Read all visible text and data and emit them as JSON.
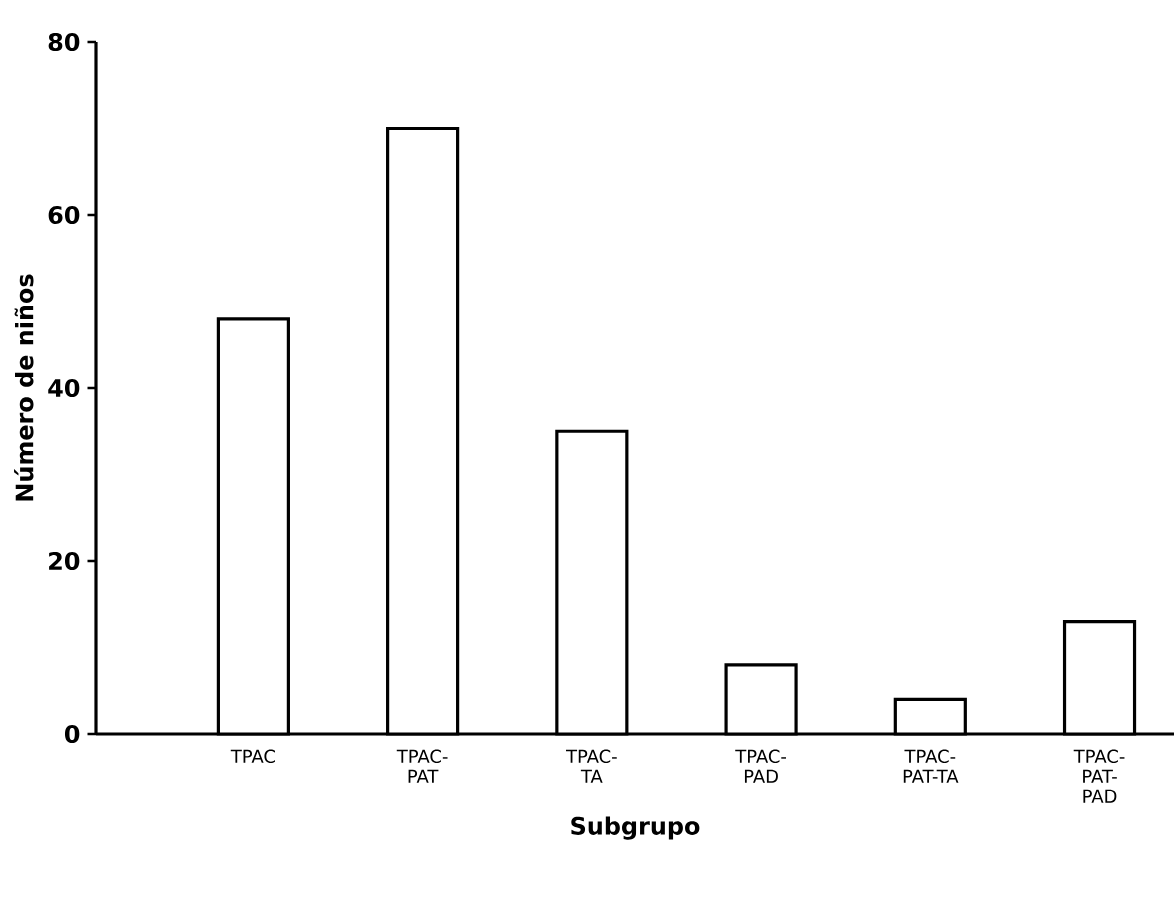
{
  "chart_data": {
    "type": "bar",
    "xlabel": "Subgrupo",
    "ylabel": "Número de niños",
    "categories": [
      "TPAC",
      "TPAC-PAT",
      "TPAC-TA",
      "TPAC-PAD",
      "TPAC-PAT-TA",
      "TPAC-PAT-PAD"
    ],
    "values": [
      48,
      70,
      35,
      8,
      4,
      13
    ],
    "color": "#ffffff",
    "ylim": [
      0,
      80
    ],
    "yticks": [
      0,
      20,
      40,
      60,
      80
    ],
    "grid": false
  }
}
